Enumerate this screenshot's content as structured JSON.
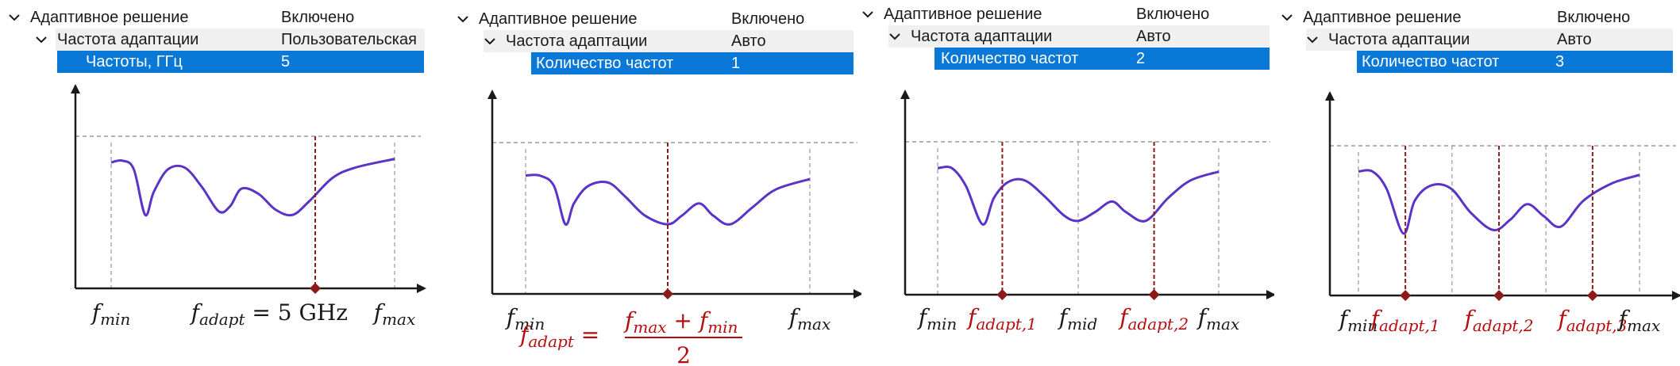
{
  "colors": {
    "curve": "#5b33c6",
    "marker": "#8b1a1a",
    "red_text": "#b50d0d",
    "selection": "#0a78d7",
    "guide": "#9a9a9a",
    "axis": "#1a1a1a"
  },
  "panels": [
    {
      "tree": {
        "root_label": "Адаптивное решение",
        "root_value": "Включено",
        "mode_label": "Частота адаптации",
        "mode_value": "Пользовательская",
        "param_label": "Частоты, ГГц",
        "param_value": "5"
      },
      "chart_data": {
        "type": "line",
        "x_range": [
          0,
          1
        ],
        "curve_points": [
          [
            0,
            0.72
          ],
          [
            0.04,
            0.73
          ],
          [
            0.08,
            0.68
          ],
          [
            0.12,
            0.42
          ],
          [
            0.15,
            0.55
          ],
          [
            0.2,
            0.68
          ],
          [
            0.26,
            0.69
          ],
          [
            0.32,
            0.58
          ],
          [
            0.38,
            0.44
          ],
          [
            0.42,
            0.47
          ],
          [
            0.46,
            0.57
          ],
          [
            0.52,
            0.54
          ],
          [
            0.58,
            0.45
          ],
          [
            0.64,
            0.42
          ],
          [
            0.7,
            0.5
          ],
          [
            0.78,
            0.63
          ],
          [
            0.86,
            0.69
          ],
          [
            1,
            0.74
          ]
        ],
        "adapt_x": [
          0.72
        ],
        "mid_x": [],
        "labels": [
          {
            "text": "f",
            "sub": "min",
            "pos": 0,
            "color": "black"
          },
          {
            "text": "f",
            "sub": "adapt",
            "tail": " = 5 GHz",
            "pos": 0.45,
            "color": "black"
          },
          {
            "text": "f",
            "sub": "max",
            "pos": 1,
            "color": "black"
          }
        ]
      }
    },
    {
      "tree": {
        "root_label": "Адаптивное решение",
        "root_value": "Включено",
        "mode_label": "Частота адаптации",
        "mode_value": "Авто",
        "param_label": "Количество частот",
        "param_value": "1"
      },
      "chart_data": {
        "type": "line",
        "x_range": [
          0,
          1
        ],
        "curve_points": [
          [
            0,
            0.68
          ],
          [
            0.05,
            0.68
          ],
          [
            0.1,
            0.62
          ],
          [
            0.14,
            0.4
          ],
          [
            0.17,
            0.52
          ],
          [
            0.22,
            0.62
          ],
          [
            0.29,
            0.64
          ],
          [
            0.35,
            0.56
          ],
          [
            0.42,
            0.45
          ],
          [
            0.5,
            0.4
          ],
          [
            0.55,
            0.45
          ],
          [
            0.61,
            0.52
          ],
          [
            0.66,
            0.45
          ],
          [
            0.72,
            0.4
          ],
          [
            0.8,
            0.5
          ],
          [
            0.88,
            0.6
          ],
          [
            1,
            0.66
          ]
        ],
        "adapt_x": [
          0.5
        ],
        "mid_x": [],
        "labels": [
          {
            "text": "f",
            "sub": "min",
            "pos": 0,
            "color": "black"
          },
          {
            "text": "f",
            "sub": "max",
            "pos": 1,
            "color": "black"
          }
        ],
        "formula": {
          "lhs_text": "f",
          "lhs_sub": "adapt",
          "num_a": "f",
          "num_a_sub": "max",
          "plus": " + ",
          "num_b": "f",
          "num_b_sub": "min",
          "den": "2"
        }
      }
    },
    {
      "tree": {
        "root_label": "Адаптивное решение",
        "root_value": "Включено",
        "mode_label": "Частота адаптации",
        "mode_value": "Авто",
        "param_label": "Количество частот",
        "param_value": "2"
      },
      "chart_data": {
        "type": "line",
        "x_range": [
          0,
          1
        ],
        "curve_points": [
          [
            0,
            0.72
          ],
          [
            0.05,
            0.72
          ],
          [
            0.1,
            0.62
          ],
          [
            0.16,
            0.4
          ],
          [
            0.2,
            0.55
          ],
          [
            0.25,
            0.64
          ],
          [
            0.31,
            0.65
          ],
          [
            0.38,
            0.56
          ],
          [
            0.45,
            0.45
          ],
          [
            0.5,
            0.42
          ],
          [
            0.56,
            0.47
          ],
          [
            0.62,
            0.53
          ],
          [
            0.67,
            0.47
          ],
          [
            0.74,
            0.42
          ],
          [
            0.82,
            0.55
          ],
          [
            0.9,
            0.65
          ],
          [
            1,
            0.7
          ]
        ],
        "adapt_x": [
          0.23,
          0.77
        ],
        "mid_x": [
          0.5
        ],
        "labels": [
          {
            "text": "f",
            "sub": "min",
            "pos": 0,
            "color": "black"
          },
          {
            "text": "f",
            "sub": "adapt,1",
            "pos": 0.23,
            "color": "red"
          },
          {
            "text": "f",
            "sub": "mid",
            "pos": 0.5,
            "color": "black"
          },
          {
            "text": "f",
            "sub": "adapt,2",
            "pos": 0.77,
            "color": "red"
          },
          {
            "text": "f",
            "sub": "max",
            "pos": 1,
            "color": "black"
          }
        ]
      }
    },
    {
      "tree": {
        "root_label": "Адаптивное решение",
        "root_value": "Включено",
        "mode_label": "Частота адаптации",
        "mode_value": "Авто",
        "param_label": "Количество частот",
        "param_value": "3"
      },
      "chart_data": {
        "type": "line",
        "x_range": [
          0,
          1
        ],
        "curve_points": [
          [
            0,
            0.72
          ],
          [
            0.05,
            0.72
          ],
          [
            0.1,
            0.62
          ],
          [
            0.16,
            0.36
          ],
          [
            0.2,
            0.55
          ],
          [
            0.26,
            0.64
          ],
          [
            0.33,
            0.62
          ],
          [
            0.4,
            0.48
          ],
          [
            0.48,
            0.38
          ],
          [
            0.54,
            0.44
          ],
          [
            0.6,
            0.53
          ],
          [
            0.66,
            0.46
          ],
          [
            0.72,
            0.4
          ],
          [
            0.8,
            0.55
          ],
          [
            0.9,
            0.65
          ],
          [
            1,
            0.7
          ]
        ],
        "adapt_x": [
          0.167,
          0.5,
          0.833
        ],
        "mid_x": [
          0.333,
          0.667
        ],
        "labels": [
          {
            "text": "f",
            "sub": "min",
            "pos": 0,
            "color": "black"
          },
          {
            "text": "f",
            "sub": "adapt,1",
            "pos": 0.167,
            "color": "red"
          },
          {
            "text": "f",
            "sub": "adapt,2",
            "pos": 0.5,
            "color": "red"
          },
          {
            "text": "f",
            "sub": "adapt,3",
            "pos": 0.833,
            "color": "red"
          },
          {
            "text": "f",
            "sub": "max",
            "pos": 1,
            "color": "black"
          }
        ]
      }
    }
  ]
}
